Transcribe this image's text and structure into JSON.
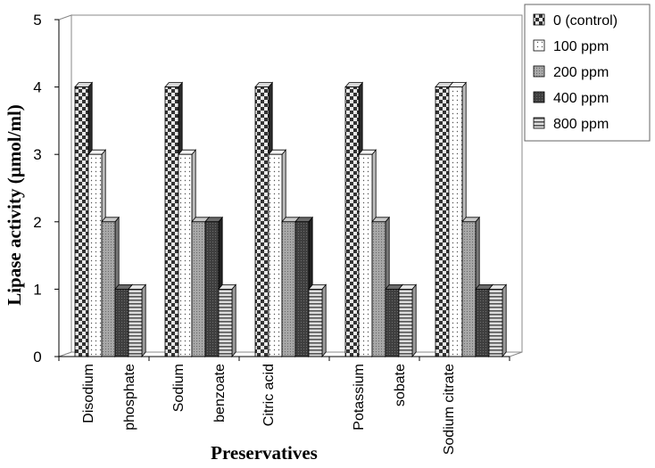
{
  "chart_data": {
    "type": "bar",
    "title": "",
    "xlabel": "Preservatives",
    "ylabel": "Lipase activity (µmol/ml)",
    "ylim": [
      0,
      5
    ],
    "yticks": [
      "0",
      "1",
      "2",
      "3",
      "4",
      "5"
    ],
    "categories": [
      [
        "Disodium",
        "phosphate"
      ],
      [
        "Sodium",
        "benzoate"
      ],
      [
        "Citric acid"
      ],
      [
        "Potassium",
        "sobate"
      ],
      [
        "Sodium citrate"
      ]
    ],
    "series": [
      {
        "name": "0  (control)",
        "values": [
          4,
          4,
          4,
          4,
          4
        ]
      },
      {
        "name": "100  ppm",
        "values": [
          3,
          3,
          3,
          3,
          4
        ]
      },
      {
        "name": "200  ppm",
        "values": [
          2,
          2,
          2,
          2,
          2
        ]
      },
      {
        "name": "400  ppm",
        "values": [
          1,
          2,
          2,
          1,
          1
        ]
      },
      {
        "name": "800  ppm",
        "values": [
          1,
          1,
          1,
          1,
          1
        ]
      }
    ],
    "legend_position": "top-right",
    "grid": false,
    "style_3d": true
  }
}
